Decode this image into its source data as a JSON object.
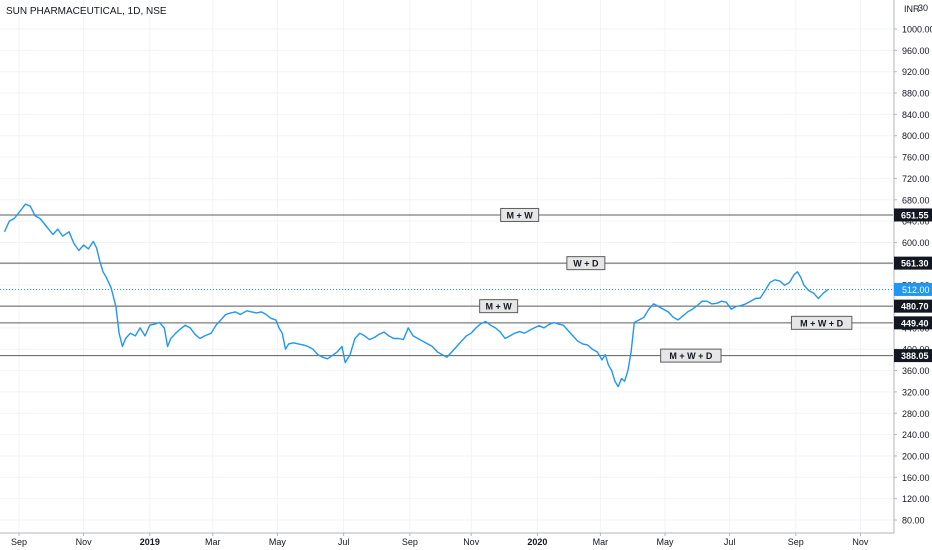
{
  "header": {
    "symbol": "SUN PHARMACEUTICAL, 1D, NSE",
    "currency": "INR",
    "top_label": "1030"
  },
  "colors": {
    "series": "#2196f3",
    "level_line": "#5d5d5d",
    "grid": "#f0f3fa",
    "axis_text": "#131722",
    "current_price": "#2196f3",
    "level_tag": "#131722"
  },
  "chart_data": {
    "type": "line",
    "title": "SUN PHARMACEUTICAL, 1D, NSE",
    "xlabel": "",
    "ylabel": "",
    "ylim": [
      60,
      1040
    ],
    "yticks": [
      80,
      120,
      160,
      200,
      240,
      280,
      320,
      360,
      400,
      440,
      480,
      520,
      560,
      600,
      640,
      680,
      720,
      760,
      800,
      840,
      880,
      920,
      960,
      1000
    ],
    "ytick_labels": [
      "80.00",
      "120.00",
      "160.00",
      "200.00",
      "240.00",
      "280.00",
      "320.00",
      "360.00",
      "400.00",
      "440.00",
      "480.00",
      "520.00",
      "560.00",
      "600.00",
      "640.00",
      "680.00",
      "720.00",
      "760.00",
      "800.00",
      "840.00",
      "880.00",
      "920.00",
      "960.00",
      "1000.00"
    ],
    "xticks": [
      {
        "label": "Sep",
        "t": 0.45
      },
      {
        "label": "Nov",
        "t": 2.45
      },
      {
        "label": "2019",
        "t": 4.5
      },
      {
        "label": "Mar",
        "t": 6.45
      },
      {
        "label": "May",
        "t": 8.45
      },
      {
        "label": "Jul",
        "t": 10.5
      },
      {
        "label": "Sep",
        "t": 12.55
      },
      {
        "label": "Nov",
        "t": 14.45
      },
      {
        "label": "2020",
        "t": 16.5
      },
      {
        "label": "Mar",
        "t": 18.45
      },
      {
        "label": "May",
        "t": 20.45
      },
      {
        "label": "Jul",
        "t": 22.45
      },
      {
        "label": "Sep",
        "t": 24.5
      },
      {
        "label": "Nov",
        "t": 26.5
      }
    ],
    "series": [
      {
        "points": [
          [
            0.0,
            620
          ],
          [
            0.15,
            640
          ],
          [
            0.3,
            645
          ],
          [
            0.5,
            660
          ],
          [
            0.65,
            672
          ],
          [
            0.8,
            668
          ],
          [
            0.95,
            650
          ],
          [
            1.1,
            645
          ],
          [
            1.3,
            630
          ],
          [
            1.5,
            615
          ],
          [
            1.65,
            625
          ],
          [
            1.8,
            612
          ],
          [
            2.0,
            620
          ],
          [
            2.15,
            598
          ],
          [
            2.3,
            585
          ],
          [
            2.45,
            595
          ],
          [
            2.6,
            588
          ],
          [
            2.75,
            602
          ],
          [
            2.85,
            590
          ],
          [
            2.95,
            565
          ],
          [
            3.05,
            545
          ],
          [
            3.15,
            535
          ],
          [
            3.3,
            515
          ],
          [
            3.45,
            480
          ],
          [
            3.55,
            430
          ],
          [
            3.65,
            405
          ],
          [
            3.75,
            420
          ],
          [
            3.9,
            430
          ],
          [
            4.05,
            425
          ],
          [
            4.2,
            440
          ],
          [
            4.35,
            425
          ],
          [
            4.5,
            445
          ],
          [
            4.65,
            447
          ],
          [
            4.8,
            450
          ],
          [
            4.95,
            440
          ],
          [
            5.05,
            405
          ],
          [
            5.15,
            420
          ],
          [
            5.3,
            430
          ],
          [
            5.45,
            438
          ],
          [
            5.6,
            445
          ],
          [
            5.75,
            440
          ],
          [
            5.9,
            428
          ],
          [
            6.05,
            420
          ],
          [
            6.2,
            425
          ],
          [
            6.4,
            430
          ],
          [
            6.55,
            445
          ],
          [
            6.7,
            455
          ],
          [
            6.85,
            465
          ],
          [
            7.0,
            468
          ],
          [
            7.15,
            470
          ],
          [
            7.3,
            465
          ],
          [
            7.5,
            472
          ],
          [
            7.65,
            470
          ],
          [
            7.8,
            468
          ],
          [
            7.95,
            470
          ],
          [
            8.1,
            465
          ],
          [
            8.25,
            458
          ],
          [
            8.4,
            455
          ],
          [
            8.5,
            440
          ],
          [
            8.6,
            430
          ],
          [
            8.7,
            400
          ],
          [
            8.8,
            410
          ],
          [
            8.95,
            412
          ],
          [
            9.1,
            410
          ],
          [
            9.25,
            408
          ],
          [
            9.4,
            405
          ],
          [
            9.55,
            400
          ],
          [
            9.7,
            390
          ],
          [
            9.85,
            385
          ],
          [
            10.0,
            382
          ],
          [
            10.15,
            388
          ],
          [
            10.3,
            395
          ],
          [
            10.45,
            405
          ],
          [
            10.55,
            375
          ],
          [
            10.7,
            390
          ],
          [
            10.85,
            420
          ],
          [
            11.0,
            430
          ],
          [
            11.15,
            425
          ],
          [
            11.3,
            418
          ],
          [
            11.45,
            422
          ],
          [
            11.6,
            428
          ],
          [
            11.75,
            432
          ],
          [
            11.9,
            425
          ],
          [
            12.05,
            420
          ],
          [
            12.2,
            420
          ],
          [
            12.35,
            418
          ],
          [
            12.5,
            440
          ],
          [
            12.65,
            425
          ],
          [
            12.8,
            420
          ],
          [
            12.95,
            415
          ],
          [
            13.1,
            410
          ],
          [
            13.25,
            405
          ],
          [
            13.4,
            395
          ],
          [
            13.55,
            390
          ],
          [
            13.7,
            385
          ],
          [
            13.85,
            395
          ],
          [
            14.0,
            405
          ],
          [
            14.15,
            415
          ],
          [
            14.3,
            425
          ],
          [
            14.45,
            430
          ],
          [
            14.6,
            440
          ],
          [
            14.75,
            448
          ],
          [
            14.9,
            452
          ],
          [
            15.05,
            445
          ],
          [
            15.2,
            440
          ],
          [
            15.35,
            432
          ],
          [
            15.5,
            420
          ],
          [
            15.65,
            425
          ],
          [
            15.8,
            430
          ],
          [
            15.95,
            433
          ],
          [
            16.1,
            430
          ],
          [
            16.25,
            435
          ],
          [
            16.4,
            440
          ],
          [
            16.55,
            444
          ],
          [
            16.7,
            440
          ],
          [
            16.85,
            446
          ],
          [
            17.0,
            450
          ],
          [
            17.15,
            447
          ],
          [
            17.3,
            445
          ],
          [
            17.45,
            435
          ],
          [
            17.6,
            425
          ],
          [
            17.75,
            415
          ],
          [
            17.9,
            410
          ],
          [
            18.05,
            408
          ],
          [
            18.2,
            400
          ],
          [
            18.35,
            395
          ],
          [
            18.5,
            380
          ],
          [
            18.6,
            390
          ],
          [
            18.7,
            370
          ],
          [
            18.8,
            360
          ],
          [
            18.9,
            340
          ],
          [
            19.0,
            330
          ],
          [
            19.1,
            345
          ],
          [
            19.2,
            340
          ],
          [
            19.3,
            360
          ],
          [
            19.4,
            395
          ],
          [
            19.5,
            450
          ],
          [
            19.65,
            455
          ],
          [
            19.8,
            460
          ],
          [
            19.95,
            475
          ],
          [
            20.1,
            485
          ],
          [
            20.25,
            480
          ],
          [
            20.4,
            475
          ],
          [
            20.55,
            470
          ],
          [
            20.7,
            460
          ],
          [
            20.85,
            455
          ],
          [
            21.0,
            462
          ],
          [
            21.15,
            470
          ],
          [
            21.3,
            475
          ],
          [
            21.45,
            482
          ],
          [
            21.6,
            490
          ],
          [
            21.75,
            490
          ],
          [
            21.9,
            485
          ],
          [
            22.05,
            486
          ],
          [
            22.2,
            490
          ],
          [
            22.35,
            488
          ],
          [
            22.5,
            475
          ],
          [
            22.65,
            480
          ],
          [
            22.8,
            482
          ],
          [
            22.95,
            485
          ],
          [
            23.1,
            490
          ],
          [
            23.25,
            495
          ],
          [
            23.4,
            496
          ],
          [
            23.55,
            510
          ],
          [
            23.7,
            525
          ],
          [
            23.85,
            530
          ],
          [
            24.0,
            528
          ],
          [
            24.15,
            520
          ],
          [
            24.3,
            525
          ],
          [
            24.45,
            540
          ],
          [
            24.55,
            545
          ],
          [
            24.65,
            535
          ],
          [
            24.75,
            520
          ],
          [
            24.9,
            510
          ],
          [
            25.05,
            505
          ],
          [
            25.2,
            495
          ],
          [
            25.35,
            505
          ],
          [
            25.5,
            512
          ]
        ]
      }
    ],
    "current_price": 512.0,
    "current_price_label": "512.00",
    "levels": [
      {
        "value": 651.55,
        "label": "651.55",
        "tag": "M + W",
        "tag_t": 15.95
      },
      {
        "value": 561.3,
        "label": "561.30",
        "tag": "W + D",
        "tag_t": 18.0
      },
      {
        "value": 480.7,
        "label": "480.70",
        "tag": "M + W",
        "tag_t": 15.3
      },
      {
        "value": 449.4,
        "label": "449.40",
        "tag": "M + W + D",
        "tag_t": 25.3
      },
      {
        "value": 388.05,
        "label": "388.05",
        "tag": "M + W + D",
        "tag_t": 21.25
      }
    ]
  }
}
